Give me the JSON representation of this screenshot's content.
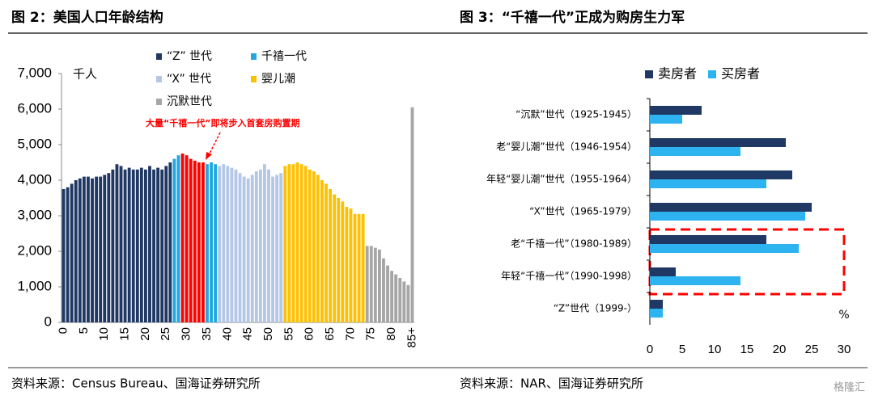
{
  "chart_data": [
    {
      "type": "bar",
      "orientation": "vertical",
      "title": "图 2：美国人口年龄结构",
      "y_unit": "千人",
      "annotation": "大量“千禧一代”即将步入首套房购置期",
      "annotation_color": "#ff0000",
      "source": "资料来源：Census Bureau、国海证券研究所",
      "legend": "top",
      "categories": [
        "0",
        null,
        null,
        null,
        null,
        "5",
        null,
        null,
        null,
        null,
        "10",
        null,
        null,
        null,
        null,
        "15",
        null,
        null,
        null,
        null,
        "20",
        null,
        null,
        null,
        null,
        "25",
        null,
        null,
        null,
        null,
        "30",
        null,
        null,
        null,
        null,
        "35",
        null,
        null,
        null,
        null,
        "40",
        null,
        null,
        null,
        null,
        "45",
        null,
        null,
        null,
        null,
        "50",
        null,
        null,
        null,
        null,
        "55",
        null,
        null,
        null,
        null,
        "60",
        null,
        null,
        null,
        null,
        "65",
        null,
        null,
        null,
        null,
        "70",
        null,
        null,
        null,
        null,
        "75",
        null,
        null,
        null,
        null,
        "80",
        null,
        null,
        null,
        null,
        "85+"
      ],
      "ylim": [
        0,
        7000
      ],
      "yticks": [
        0,
        {
          "value": 1000,
          "label": "1,000"
        },
        {
          "value": 2000,
          "label": "2,000"
        },
        {
          "value": 3000,
          "label": "3,000"
        },
        {
          "value": 4000,
          "label": "4,000"
        },
        {
          "value": 5000,
          "label": "5,000"
        },
        {
          "value": 6000,
          "label": "6,000"
        },
        {
          "value": 7000,
          "label": "7,000"
        }
      ],
      "series": [
        {
          "name": "“Z” 世代",
          "color": "#203864",
          "values": [
            3750,
            3800,
            3900,
            4000,
            4050,
            4100,
            4100,
            4050,
            4100,
            4100,
            4150,
            4200,
            4300,
            4450,
            4400,
            4300,
            4350,
            4300,
            4300,
            4350,
            4300,
            4400,
            4300,
            4350,
            4300,
            4400,
            4500,
            null,
            null,
            null,
            null,
            null,
            null,
            null,
            null,
            null,
            null,
            null,
            null,
            null,
            null,
            null,
            null,
            null,
            null,
            null,
            null,
            null,
            null,
            null,
            null,
            null,
            null,
            null,
            null,
            null,
            null,
            null,
            null,
            null,
            null,
            null,
            null,
            null,
            null,
            null,
            null,
            null,
            null,
            null,
            null,
            null,
            null,
            null,
            null,
            null,
            null,
            null,
            null,
            null,
            null,
            null,
            null,
            null,
            null,
            null
          ]
        },
        {
          "name": "千禧一代",
          "color": "#1fa8e0",
          "values": [
            null,
            null,
            null,
            null,
            null,
            null,
            null,
            null,
            null,
            null,
            null,
            null,
            null,
            null,
            null,
            null,
            null,
            null,
            null,
            null,
            null,
            null,
            null,
            null,
            null,
            null,
            null,
            4600,
            4700,
            null,
            null,
            null,
            null,
            null,
            null,
            4450,
            4500,
            4450,
            null,
            null,
            null,
            null,
            null,
            null,
            null,
            null,
            null,
            null,
            null,
            null,
            null,
            null,
            null,
            null,
            null,
            null,
            null,
            null,
            null,
            null,
            null,
            null,
            null,
            null,
            null,
            null,
            null,
            null,
            null,
            null,
            null,
            null,
            null,
            null,
            null,
            null,
            null,
            null,
            null,
            null,
            null,
            null,
            null,
            null,
            null,
            null
          ]
        },
        {
          "color": "#ff0000",
          "values": [
            null,
            null,
            null,
            null,
            null,
            null,
            null,
            null,
            null,
            null,
            null,
            null,
            null,
            null,
            null,
            null,
            null,
            null,
            null,
            null,
            null,
            null,
            null,
            null,
            null,
            null,
            null,
            null,
            null,
            4750,
            4700,
            4600,
            4550,
            4500,
            4500,
            null,
            null,
            null,
            null,
            null,
            null,
            null,
            null,
            null,
            null,
            null,
            null,
            null,
            null,
            null,
            null,
            null,
            null,
            null,
            null,
            null,
            null,
            null,
            null,
            null,
            null,
            null,
            null,
            null,
            null,
            null,
            null,
            null,
            null,
            null,
            null,
            null,
            null,
            null,
            null,
            null,
            null,
            null,
            null,
            null,
            null,
            null,
            null,
            null,
            null,
            null
          ]
        },
        {
          "name": "“X” 世代",
          "color": "#b4c7e7",
          "values": [
            null,
            null,
            null,
            null,
            null,
            null,
            null,
            null,
            null,
            null,
            null,
            null,
            null,
            null,
            null,
            null,
            null,
            null,
            null,
            null,
            null,
            null,
            null,
            null,
            null,
            null,
            null,
            null,
            null,
            null,
            null,
            null,
            null,
            null,
            null,
            null,
            null,
            null,
            4400,
            4450,
            4400,
            4350,
            4300,
            4200,
            4100,
            4050,
            4150,
            4250,
            4300,
            4450,
            4300,
            4100,
            4150,
            4200,
            null,
            null,
            null,
            null,
            null,
            null,
            null,
            null,
            null,
            null,
            null,
            null,
            null,
            null,
            null,
            null,
            null,
            null,
            null,
            null,
            null,
            null,
            null,
            null,
            null,
            null,
            null,
            null,
            null,
            null,
            null,
            null
          ]
        },
        {
          "name": "婴儿潮",
          "color": "#ffc000",
          "values": [
            null,
            null,
            null,
            null,
            null,
            null,
            null,
            null,
            null,
            null,
            null,
            null,
            null,
            null,
            null,
            null,
            null,
            null,
            null,
            null,
            null,
            null,
            null,
            null,
            null,
            null,
            null,
            null,
            null,
            null,
            null,
            null,
            null,
            null,
            null,
            null,
            null,
            null,
            null,
            null,
            null,
            null,
            null,
            null,
            null,
            null,
            null,
            null,
            null,
            null,
            null,
            null,
            null,
            null,
            4400,
            4450,
            4450,
            4500,
            4450,
            4400,
            4300,
            4250,
            4150,
            4000,
            3900,
            3750,
            3600,
            3500,
            3400,
            3250,
            3200,
            3050,
            3050,
            3050,
            null,
            null,
            null,
            null,
            null,
            null,
            null,
            null,
            null,
            null,
            null,
            null
          ]
        },
        {
          "name": "沉默世代",
          "color": "#a6a6a6",
          "values": [
            null,
            null,
            null,
            null,
            null,
            null,
            null,
            null,
            null,
            null,
            null,
            null,
            null,
            null,
            null,
            null,
            null,
            null,
            null,
            null,
            null,
            null,
            null,
            null,
            null,
            null,
            null,
            null,
            null,
            null,
            null,
            null,
            null,
            null,
            null,
            null,
            null,
            null,
            null,
            null,
            null,
            null,
            null,
            null,
            null,
            null,
            null,
            null,
            null,
            null,
            null,
            null,
            null,
            null,
            null,
            null,
            null,
            null,
            null,
            null,
            null,
            null,
            null,
            null,
            null,
            null,
            null,
            null,
            null,
            null,
            null,
            null,
            null,
            null,
            2150,
            2150,
            2100,
            2050,
            1800,
            1600,
            1450,
            1350,
            1250,
            1150,
            1050,
            6050
          ]
        }
      ]
    },
    {
      "type": "bar",
      "orientation": "horizontal",
      "title": "图 3：“千禧一代”正成为购房生力军",
      "x_unit": "%",
      "source": "资料来源：NAR、国海证券研究所",
      "watermark": "格隆汇",
      "legend": "top",
      "categories": [
        "“沉默”世代（1925-1945）",
        "老“婴儿潮”世代（1946-1954）",
        "年轻“婴儿潮”世代（1955-1964）",
        "“X”世代（1965-1979）",
        "老“千禧一代”（1980-1989）",
        "年轻“千禧一代”（1990-1998）",
        "“Z”世代（1999-）"
      ],
      "xlim": [
        0,
        30
      ],
      "xticks": [
        0,
        5,
        10,
        15,
        20,
        25,
        30
      ],
      "series": [
        {
          "name": "卖房者",
          "color": "#203864",
          "values": [
            8,
            21,
            22,
            25,
            18,
            4,
            2
          ]
        },
        {
          "name": "买房者",
          "color": "#2db4f0",
          "values": [
            5,
            14,
            18,
            24,
            23,
            14,
            2
          ]
        }
      ]
    }
  ]
}
